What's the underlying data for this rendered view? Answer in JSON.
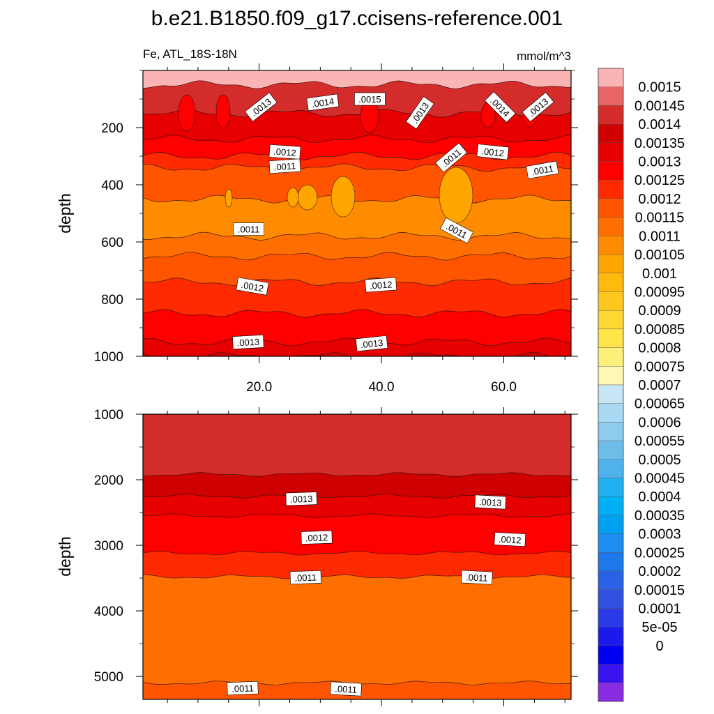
{
  "title": "b.e21.B1850.f09_g17.ccisens-reference.001",
  "chart_data": [
    {
      "type": "contour",
      "panel": "upper",
      "left_label": "Fe, ATL_18S-18N",
      "right_label": "mmol/m^3",
      "ylabel": "depth",
      "ylim": [
        1000,
        0
      ],
      "xlim": [
        1,
        71
      ],
      "yticks": [
        200,
        400,
        600,
        800,
        1000
      ],
      "ytick_labels": [
        "200",
        "400",
        "600",
        "800",
        "1000"
      ],
      "xticks": [
        20,
        40,
        60
      ],
      "xtick_labels": [
        "20.0",
        "40.0",
        "60.0"
      ],
      "bands": [
        {
          "depth": 10,
          "value": 0.00155
        },
        {
          "depth": 50,
          "value": 0.0014
        },
        {
          "depth": 150,
          "value": 0.0013
        },
        {
          "depth": 240,
          "value": 0.00125
        },
        {
          "depth": 300,
          "value": 0.0012
        },
        {
          "depth": 340,
          "value": 0.00115
        },
        {
          "depth": 450,
          "value": 0.00105
        },
        {
          "depth": 580,
          "value": 0.0011
        },
        {
          "depth": 650,
          "value": 0.00115
        },
        {
          "depth": 740,
          "value": 0.0012
        },
        {
          "depth": 850,
          "value": 0.00125
        },
        {
          "depth": 950,
          "value": 0.0013
        },
        {
          "depth": 1000,
          "value": 0.00135
        }
      ],
      "contour_labels": [
        {
          "text": ".0013",
          "x": 20.3,
          "depth": 128
        },
        {
          "text": ".0014",
          "x": 30.4,
          "depth": 112
        },
        {
          "text": ".0015",
          "x": 38.1,
          "depth": 100
        },
        {
          "text": ".0013",
          "x": 46.3,
          "depth": 148
        },
        {
          "text": ".0014",
          "x": 59.4,
          "depth": 128
        },
        {
          "text": ".0013",
          "x": 65.6,
          "depth": 128
        },
        {
          "text": ".0012",
          "x": 24.2,
          "depth": 285
        },
        {
          "text": ".0011",
          "x": 24.2,
          "depth": 335
        },
        {
          "text": ".0011",
          "x": 51.4,
          "depth": 305
        },
        {
          "text": ".0012",
          "x": 58.2,
          "depth": 285
        },
        {
          "text": ".0011",
          "x": 66.3,
          "depth": 348
        },
        {
          "text": ".0011",
          "x": 18.3,
          "depth": 555
        },
        {
          "text": ".0011",
          "x": 52.3,
          "depth": 560
        },
        {
          "text": ".0012",
          "x": 18.9,
          "depth": 755
        },
        {
          "text": ".0012",
          "x": 39.9,
          "depth": 750
        },
        {
          "text": ".0013",
          "x": 18.2,
          "depth": 950
        },
        {
          "text": ".0013",
          "x": 38.4,
          "depth": 955
        }
      ]
    },
    {
      "type": "contour",
      "panel": "lower",
      "ylabel": "depth",
      "ylim": [
        5350,
        1000
      ],
      "xlim": [
        1,
        71
      ],
      "yticks": [
        1000,
        2000,
        3000,
        4000,
        5000
      ],
      "ytick_labels": [
        "1000",
        "2000",
        "3000",
        "4000",
        "5000"
      ],
      "bands": [
        {
          "depth": 1000,
          "value": 0.0014
        },
        {
          "depth": 1920,
          "value": 0.00135
        },
        {
          "depth": 2250,
          "value": 0.0013
        },
        {
          "depth": 2550,
          "value": 0.00125
        },
        {
          "depth": 3120,
          "value": 0.0012
        },
        {
          "depth": 3480,
          "value": 0.0011
        },
        {
          "depth": 5100,
          "value": 0.00115
        }
      ],
      "contour_labels": [
        {
          "text": ".0013",
          "x": 26.9,
          "depth": 2290
        },
        {
          "text": ".0013",
          "x": 57.8,
          "depth": 2340
        },
        {
          "text": ".0012",
          "x": 29.4,
          "depth": 2880
        },
        {
          "text": ".0012",
          "x": 61.0,
          "depth": 2910
        },
        {
          "text": ".0011",
          "x": 27.6,
          "depth": 3490
        },
        {
          "text": ".0011",
          "x": 55.6,
          "depth": 3490
        },
        {
          "text": ".0011",
          "x": 17.3,
          "depth": 5180
        },
        {
          "text": ".0011",
          "x": 34.2,
          "depth": 5190
        }
      ]
    },
    {
      "type": "colorbar",
      "levels": [
        "0.0015",
        "0.00145",
        "0.0014",
        "0.00135",
        "0.0013",
        "0.00125",
        "0.0012",
        "0.00115",
        "0.0011",
        "0.00105",
        "0.001",
        "0.00095",
        "0.0009",
        "0.00085",
        "0.0008",
        "0.00075",
        "0.0007",
        "0.00065",
        "0.0006",
        "0.00055",
        "0.0005",
        "0.00045",
        "0.0004",
        "0.00035",
        "0.0003",
        "0.00025",
        "0.0002",
        "0.00015",
        "0.0001",
        "5e-05",
        "0"
      ],
      "colors": [
        "#fbb4b4",
        "#e76565",
        "#d42b2b",
        "#cf0000",
        "#e60000",
        "#ff0000",
        "#ff2a00",
        "#ff5500",
        "#ff6e00",
        "#ff8c00",
        "#ffa500",
        "#ffb90f",
        "#ffc820",
        "#ffd734",
        "#ffe44a",
        "#fff07a",
        "#fff8b5",
        "#c6e6f5",
        "#a9d8f2",
        "#8ecbef",
        "#6ebde9",
        "#4fb2ec",
        "#20b2f0",
        "#00b0f5",
        "#00a0f0",
        "#1e8cf0",
        "#1e78eb",
        "#2a62e6",
        "#3050e2",
        "#2a3be6",
        "#1a1aeb",
        "#0000f0",
        "#3a12ee",
        "#8a2be2"
      ]
    }
  ]
}
